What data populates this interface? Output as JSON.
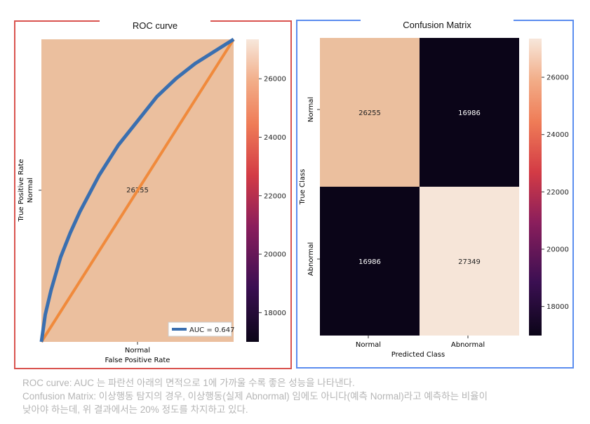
{
  "chart_data": [
    {
      "type": "line",
      "title": "ROC curve",
      "xlabel": "False Positive Rate",
      "ylabel": "True Positive Rate",
      "x_tick_labels": [
        "Normal"
      ],
      "y_tick_labels": [
        "Normal"
      ],
      "background_cell_value": "26255",
      "xlim": [
        0,
        1
      ],
      "ylim": [
        0,
        1
      ],
      "series": [
        {
          "name": "AUC = 0.647",
          "color": "#3a6fb0",
          "x": [
            0,
            0.02,
            0.05,
            0.1,
            0.15,
            0.2,
            0.3,
            0.4,
            0.5,
            0.6,
            0.7,
            0.8,
            0.9,
            1.0
          ],
          "y": [
            0,
            0.09,
            0.17,
            0.28,
            0.36,
            0.43,
            0.55,
            0.65,
            0.73,
            0.81,
            0.87,
            0.92,
            0.96,
            1.0
          ]
        },
        {
          "color": "#f08a3c",
          "x": [
            0,
            1
          ],
          "y": [
            0,
            1
          ]
        }
      ],
      "colorbar": {
        "ticks": [
          "26000",
          "24000",
          "22000",
          "20000",
          "18000"
        ],
        "range": [
          17000,
          27349
        ]
      },
      "legend_position": "lower-right"
    },
    {
      "type": "heatmap",
      "title": "Confusion Matrix",
      "xlabel": "Predicted Class",
      "ylabel": "True Class",
      "x_tick_labels": [
        "Normal",
        "Abnormal"
      ],
      "y_tick_labels": [
        "Normal",
        "Abnormal"
      ],
      "values": [
        [
          "26255",
          "16986"
        ],
        [
          "16986",
          "27349"
        ]
      ],
      "cell_colors": [
        [
          "#ebbf9e",
          "#0b0518"
        ],
        [
          "#0b0518",
          "#f6e5d8"
        ]
      ],
      "colorbar": {
        "ticks": [
          "26000",
          "24000",
          "22000",
          "20000",
          "18000"
        ],
        "range": [
          16986,
          27349
        ]
      }
    }
  ],
  "caption": {
    "line1": "ROC curve: AUC 는 파란선 아래의 면적으로 1에 가까울 수록 좋은 성능을 나타낸다.",
    "line2": "Confusion Matrix: 이상행동 탐지의 경우, 이상행동(실제 Abnormal) 임에도 아니다(예측 Normal)라고 예측하는 비율이",
    "line3": "낮아야 하는데, 위 결과에서는 20% 정도를 차지하고 있다."
  }
}
